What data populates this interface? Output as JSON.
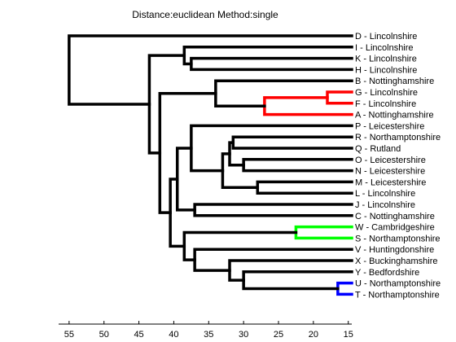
{
  "chart_data": {
    "type": "dendrogram",
    "title": "Distance:euclidean Method:single",
    "orientation": "right",
    "xlim": [
      56.5,
      14.5
    ],
    "x_ticks": [
      55,
      50,
      45,
      40,
      35,
      30,
      25,
      20,
      15
    ],
    "colors": {
      "default": "#000000",
      "red": "#ff0000",
      "green": "#00ff00",
      "blue": "#0000ff"
    },
    "leaves": [
      {
        "id": "D",
        "label": "D - Lincolnshire"
      },
      {
        "id": "I",
        "label": "I - Lincolnshire"
      },
      {
        "id": "K",
        "label": "K - Lincolnshire"
      },
      {
        "id": "H",
        "label": "H - Lincolnshire"
      },
      {
        "id": "B",
        "label": "B - Nottinghamshire"
      },
      {
        "id": "G",
        "label": "G - Lincolnshire"
      },
      {
        "id": "F",
        "label": "F - Lincolnshire"
      },
      {
        "id": "A",
        "label": "A - Nottinghamshire"
      },
      {
        "id": "P",
        "label": "P - Leicestershire"
      },
      {
        "id": "R",
        "label": "R - Northamptonshire"
      },
      {
        "id": "Q",
        "label": "Q - Rutland"
      },
      {
        "id": "O",
        "label": "O - Leicestershire"
      },
      {
        "id": "N",
        "label": "N - Leicestershire"
      },
      {
        "id": "M",
        "label": "M - Leicestershire"
      },
      {
        "id": "L",
        "label": "L - Lincolnshire"
      },
      {
        "id": "J",
        "label": "J - Lincolnshire"
      },
      {
        "id": "C",
        "label": "C - Nottinghamshire"
      },
      {
        "id": "W",
        "label": "W - Cambridgeshire"
      },
      {
        "id": "S",
        "label": "S - Northamptonshire"
      },
      {
        "id": "V",
        "label": "V - Huntingdonshire"
      },
      {
        "id": "X",
        "label": "X - Buckinghamshire"
      },
      {
        "id": "Y",
        "label": "Y - Bedfordshire"
      },
      {
        "id": "U",
        "label": "U - Northamptonshire"
      },
      {
        "id": "T",
        "label": "T - Northamptonshire"
      }
    ],
    "merges": [
      {
        "id": "m1",
        "children": [
          "U",
          "T"
        ],
        "height": 16.5,
        "color": "blue"
      },
      {
        "id": "m2",
        "children": [
          "G",
          "F"
        ],
        "height": 18.0,
        "color": "red"
      },
      {
        "id": "m3",
        "children": [
          "W",
          "S"
        ],
        "height": 22.5,
        "color": "green"
      },
      {
        "id": "m4",
        "children": [
          "m2",
          "A"
        ],
        "height": 27.0,
        "color": "red"
      },
      {
        "id": "m5",
        "children": [
          "M",
          "L"
        ],
        "height": 28.0,
        "color": "default"
      },
      {
        "id": "m6",
        "children": [
          "O",
          "N"
        ],
        "height": 30.0,
        "color": "default"
      },
      {
        "id": "m7",
        "children": [
          "Y",
          "m1"
        ],
        "height": 30.0,
        "color": "default"
      },
      {
        "id": "m8",
        "children": [
          "R",
          "Q"
        ],
        "height": 31.5,
        "color": "default"
      },
      {
        "id": "m9",
        "children": [
          "m8",
          "m6"
        ],
        "height": 32.0,
        "color": "default"
      },
      {
        "id": "m10",
        "children": [
          "X",
          "m7"
        ],
        "height": 32.0,
        "color": "default"
      },
      {
        "id": "m11",
        "children": [
          "m9",
          "m5"
        ],
        "height": 33.0,
        "color": "default"
      },
      {
        "id": "m12",
        "children": [
          "B",
          "m4"
        ],
        "height": 34.0,
        "color": "default"
      },
      {
        "id": "m13",
        "children": [
          "J",
          "C"
        ],
        "height": 37.0,
        "color": "default"
      },
      {
        "id": "m14",
        "children": [
          "V",
          "m10"
        ],
        "height": 37.0,
        "color": "default"
      },
      {
        "id": "m15",
        "children": [
          "P",
          "m11"
        ],
        "height": 37.5,
        "color": "default"
      },
      {
        "id": "m16",
        "children": [
          "K",
          "H"
        ],
        "height": 37.5,
        "color": "default"
      },
      {
        "id": "m17",
        "children": [
          "I",
          "m16"
        ],
        "height": 38.5,
        "color": "default"
      },
      {
        "id": "m18",
        "children": [
          "m3",
          "m14"
        ],
        "height": 38.5,
        "color": "default"
      },
      {
        "id": "m19",
        "children": [
          "m15",
          "m13"
        ],
        "height": 39.5,
        "color": "default"
      },
      {
        "id": "m20",
        "children": [
          "m19",
          "m18"
        ],
        "height": 40.5,
        "color": "default"
      },
      {
        "id": "m21",
        "children": [
          "m12",
          "m20"
        ],
        "height": 42.0,
        "color": "default"
      },
      {
        "id": "m22",
        "children": [
          "m17",
          "m21"
        ],
        "height": 43.5,
        "color": "default"
      },
      {
        "id": "m23",
        "children": [
          "D",
          "m22"
        ],
        "height": 55.0,
        "color": "default"
      }
    ]
  }
}
